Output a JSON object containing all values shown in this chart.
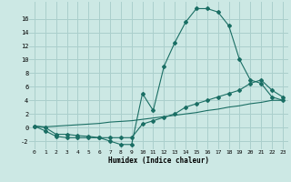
{
  "xlabel": "Humidex (Indice chaleur)",
  "background_color": "#cce8e4",
  "grid_color": "#aacfcc",
  "line_color": "#1a6e64",
  "xlim": [
    -0.5,
    23.5
  ],
  "ylim": [
    -3.2,
    18.5
  ],
  "xticks": [
    0,
    1,
    2,
    3,
    4,
    5,
    6,
    7,
    8,
    9,
    10,
    11,
    12,
    13,
    14,
    15,
    16,
    17,
    18,
    19,
    20,
    21,
    22,
    23
  ],
  "yticks": [
    -2,
    0,
    2,
    4,
    6,
    8,
    10,
    12,
    14,
    16
  ],
  "series": [
    {
      "x": [
        0,
        1,
        2,
        3,
        4,
        5,
        6,
        7,
        8,
        9,
        10,
        11,
        12,
        13,
        14,
        15,
        16,
        17,
        18,
        19,
        20,
        21,
        22,
        23
      ],
      "y": [
        0.2,
        -0.5,
        -1.3,
        -1.5,
        -1.5,
        -1.5,
        -1.5,
        -2.0,
        -2.5,
        -2.5,
        5.0,
        2.5,
        9.0,
        12.5,
        15.5,
        17.5,
        17.5,
        17.0,
        15.0,
        10.0,
        7.0,
        6.5,
        4.5,
        4.0
      ],
      "has_markers": true
    },
    {
      "x": [
        0,
        1,
        2,
        3,
        4,
        5,
        6,
        7,
        8,
        9,
        10,
        11,
        12,
        13,
        14,
        15,
        16,
        17,
        18,
        19,
        20,
        21,
        22,
        23
      ],
      "y": [
        0.2,
        0.0,
        -1.0,
        -1.0,
        -1.2,
        -1.3,
        -1.5,
        -1.5,
        -1.5,
        -1.5,
        0.5,
        1.0,
        1.5,
        2.0,
        3.0,
        3.5,
        4.0,
        4.5,
        5.0,
        5.5,
        6.5,
        7.0,
        5.5,
        4.5
      ],
      "has_markers": true
    },
    {
      "x": [
        0,
        1,
        2,
        3,
        4,
        5,
        6,
        7,
        8,
        9,
        10,
        11,
        12,
        13,
        14,
        15,
        16,
        17,
        18,
        19,
        20,
        21,
        22,
        23
      ],
      "y": [
        0.2,
        0.1,
        0.2,
        0.3,
        0.4,
        0.5,
        0.6,
        0.8,
        0.9,
        1.0,
        1.2,
        1.4,
        1.6,
        1.8,
        2.0,
        2.2,
        2.5,
        2.7,
        3.0,
        3.2,
        3.5,
        3.7,
        4.0,
        4.0
      ],
      "has_markers": false
    }
  ]
}
